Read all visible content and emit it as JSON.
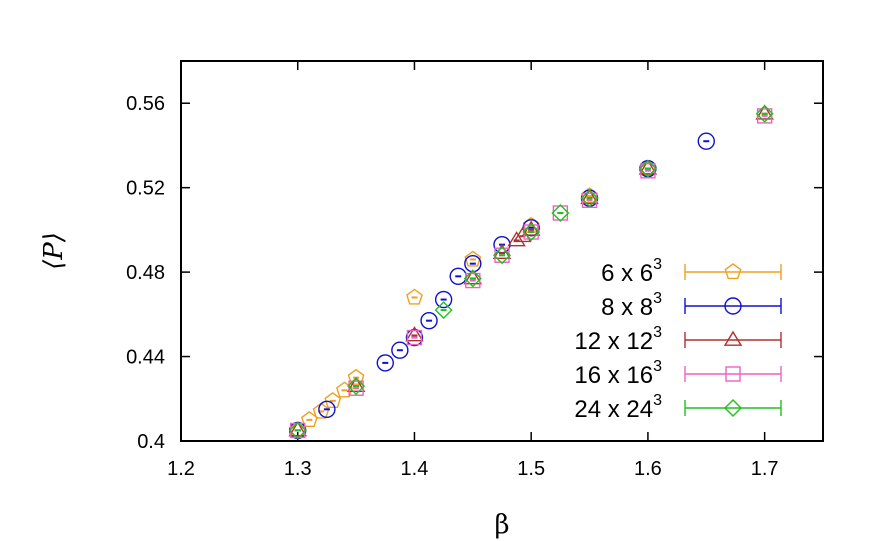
{
  "chart_data": {
    "type": "scatter",
    "title": "",
    "xlabel": "β",
    "ylabel": "⟨P⟩",
    "xlim": [
      1.2,
      1.75
    ],
    "ylim": [
      0.4,
      0.58
    ],
    "xticks": [
      "1.2",
      "1.3",
      "1.4",
      "1.5",
      "1.6",
      "1.7"
    ],
    "yticks": [
      "0.4",
      "0.44",
      "0.48",
      "0.52",
      "0.56"
    ],
    "grid": false,
    "legend_position": "bottom-right",
    "series": [
      {
        "name": "6 x 6",
        "name_sup": "3",
        "color": "#f0a020",
        "marker": "pentagon",
        "points": [
          [
            1.3,
            0.405
          ],
          [
            1.31,
            0.41
          ],
          [
            1.32,
            0.414
          ],
          [
            1.33,
            0.419
          ],
          [
            1.34,
            0.424
          ],
          [
            1.35,
            0.43
          ],
          [
            1.4,
            0.468
          ],
          [
            1.45,
            0.486
          ],
          [
            1.5,
            0.502
          ],
          [
            1.55,
            0.516
          ],
          [
            1.6,
            0.529
          ]
        ]
      },
      {
        "name": "8 x 8",
        "name_sup": "3",
        "color": "#1010d0",
        "marker": "circle",
        "points": [
          [
            1.3,
            0.405
          ],
          [
            1.325,
            0.415
          ],
          [
            1.375,
            0.437
          ],
          [
            1.3875,
            0.443
          ],
          [
            1.4,
            0.449
          ],
          [
            1.4125,
            0.457
          ],
          [
            1.425,
            0.467
          ],
          [
            1.4375,
            0.478
          ],
          [
            1.45,
            0.484
          ],
          [
            1.475,
            0.493
          ],
          [
            1.5,
            0.501
          ],
          [
            1.55,
            0.515
          ],
          [
            1.6,
            0.529
          ],
          [
            1.65,
            0.542
          ]
        ]
      },
      {
        "name": "12 x 12",
        "name_sup": "3",
        "color": "#b03030",
        "marker": "triangle",
        "points": [
          [
            1.3,
            0.405
          ],
          [
            1.35,
            0.426
          ],
          [
            1.4,
            0.45
          ],
          [
            1.45,
            0.477
          ],
          [
            1.475,
            0.489
          ],
          [
            1.4875,
            0.495
          ],
          [
            1.4925,
            0.497
          ],
          [
            1.5,
            0.5
          ],
          [
            1.55,
            0.515
          ],
          [
            1.6,
            0.529
          ],
          [
            1.7,
            0.555
          ]
        ]
      },
      {
        "name": "16 x 16",
        "name_sup": "3",
        "color": "#f060c0",
        "marker": "square",
        "points": [
          [
            1.3,
            0.405
          ],
          [
            1.35,
            0.425
          ],
          [
            1.4,
            0.449
          ],
          [
            1.45,
            0.476
          ],
          [
            1.475,
            0.488
          ],
          [
            1.5,
            0.499
          ],
          [
            1.525,
            0.508
          ],
          [
            1.55,
            0.514
          ],
          [
            1.6,
            0.528
          ],
          [
            1.7,
            0.554
          ]
        ]
      },
      {
        "name": "24 x 24",
        "name_sup": "3",
        "color": "#20c020",
        "marker": "diamond",
        "points": [
          [
            1.3,
            0.405
          ],
          [
            1.35,
            0.426
          ],
          [
            1.425,
            0.462
          ],
          [
            1.45,
            0.477
          ],
          [
            1.475,
            0.488
          ],
          [
            1.5,
            0.499
          ],
          [
            1.525,
            0.508
          ],
          [
            1.55,
            0.515
          ],
          [
            1.6,
            0.529
          ],
          [
            1.7,
            0.555
          ]
        ]
      }
    ]
  }
}
